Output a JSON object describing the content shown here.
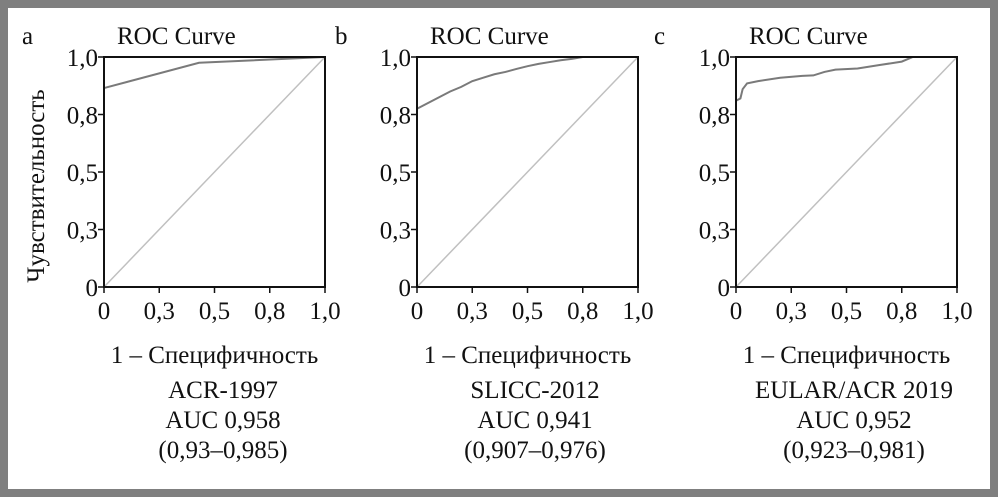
{
  "chart_data": [
    {
      "type": "line",
      "panel": "a",
      "title": "ROC Curve",
      "xlabel": "1 – Специфичность",
      "ylabel": "Чувствительность",
      "xlim": [
        0,
        1
      ],
      "ylim": [
        0,
        1
      ],
      "ticks": [
        0,
        0.25,
        0.5,
        0.75,
        1
      ],
      "tick_labels": [
        "0",
        "0,3",
        "0,5",
        "0,8",
        "1,0"
      ],
      "series": [
        {
          "name": "ROC",
          "x": [
            0,
            0.43,
            1
          ],
          "y": [
            0.865,
            0.975,
            1
          ]
        },
        {
          "name": "reference",
          "x": [
            0,
            1
          ],
          "y": [
            0,
            1
          ]
        }
      ],
      "caption": [
        "ACR-1997",
        "AUC 0,958",
        "(0,93–0,985)"
      ]
    },
    {
      "type": "line",
      "panel": "b",
      "title": "ROC Curve",
      "xlabel": "1 – Специфичность",
      "ylabel": "",
      "xlim": [
        0,
        1
      ],
      "ylim": [
        0,
        1
      ],
      "ticks": [
        0,
        0.25,
        0.5,
        0.75,
        1
      ],
      "tick_labels": [
        "0",
        "0,3",
        "0,5",
        "0,8",
        "1,0"
      ],
      "series": [
        {
          "name": "ROC",
          "x": [
            0,
            0.05,
            0.1,
            0.15,
            0.2,
            0.25,
            0.3,
            0.35,
            0.4,
            0.45,
            0.5,
            0.55,
            0.6,
            0.65,
            0.7,
            0.75
          ],
          "y": [
            0.775,
            0.8,
            0.825,
            0.85,
            0.87,
            0.895,
            0.91,
            0.925,
            0.935,
            0.948,
            0.96,
            0.97,
            0.978,
            0.986,
            0.992,
            1
          ]
        },
        {
          "name": "reference",
          "x": [
            0,
            1
          ],
          "y": [
            0,
            1
          ]
        }
      ],
      "caption": [
        "SLICC-2012",
        "AUC 0,941",
        "(0,907–0,976)"
      ]
    },
    {
      "type": "line",
      "panel": "c",
      "title": "ROC Curve",
      "xlabel": "1 – Специфичность",
      "ylabel": "",
      "xlim": [
        0,
        1
      ],
      "ylim": [
        0,
        1
      ],
      "ticks": [
        0,
        0.25,
        0.5,
        0.75,
        1
      ],
      "tick_labels": [
        "0",
        "0,3",
        "0,5",
        "0,8",
        "1,0"
      ],
      "series": [
        {
          "name": "ROC",
          "x": [
            0,
            0.02,
            0.03,
            0.05,
            0.1,
            0.2,
            0.3,
            0.35,
            0.4,
            0.45,
            0.55,
            0.65,
            0.75,
            0.8
          ],
          "y": [
            0.81,
            0.82,
            0.86,
            0.885,
            0.895,
            0.91,
            0.918,
            0.92,
            0.935,
            0.945,
            0.95,
            0.965,
            0.98,
            1
          ]
        },
        {
          "name": "reference",
          "x": [
            0,
            1
          ],
          "y": [
            0,
            1
          ]
        }
      ],
      "caption": [
        "EULAR/ACR 2019",
        "AUC 0,952",
        "(0,923–0,981)"
      ]
    }
  ],
  "colors": {
    "roc": "#7a7a7a",
    "reference": "#c0c0c0",
    "frame": "#7f7f7f"
  }
}
